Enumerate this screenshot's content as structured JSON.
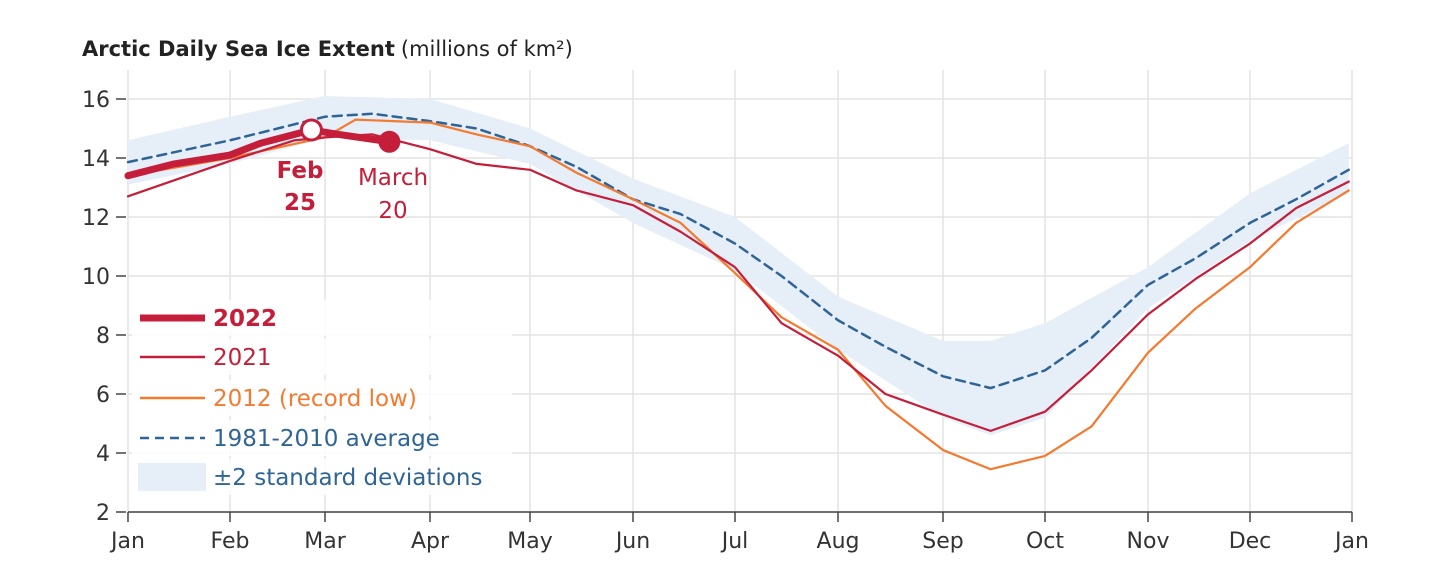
{
  "chart_data": {
    "type": "line",
    "title": "Arctic Daily Sea Ice Extent",
    "subtitle": "(millions of km²)",
    "xlabel": "",
    "ylabel": "",
    "ylim": [
      2,
      17
    ],
    "yticks": [
      2,
      4,
      6,
      8,
      10,
      12,
      14,
      16
    ],
    "xticks": [
      "Jan",
      "Feb",
      "Mar",
      "Apr",
      "May",
      "Jun",
      "Jul",
      "Aug",
      "Sep",
      "Oct",
      "Nov",
      "Dec",
      "Jan"
    ],
    "grid": true,
    "legend_placement": "bottom-left",
    "colors": {
      "y2022": "#c41e3a",
      "y2021": "#c41e3a",
      "y2012": "#f47a30",
      "average": "#2f6496",
      "band": "#e6eef8"
    },
    "band": {
      "name": "±2 standard deviations",
      "x": [
        "01-01",
        "02-01",
        "03-01",
        "04-01",
        "05-01",
        "06-01",
        "07-01",
        "08-01",
        "09-01",
        "09-15",
        "10-01",
        "11-01",
        "12-01",
        "12-31"
      ],
      "upper": [
        14.6,
        15.4,
        16.1,
        16.0,
        15.0,
        13.3,
        12.0,
        9.3,
        7.8,
        7.8,
        8.4,
        10.3,
        12.8,
        14.5
      ],
      "lower": [
        13.1,
        13.8,
        14.7,
        14.6,
        13.8,
        11.8,
        10.2,
        7.5,
        5.2,
        4.6,
        5.2,
        8.9,
        11.2,
        12.8
      ]
    },
    "series": [
      {
        "name": "1981-2010 average",
        "style": "dashed",
        "x": [
          "01-01",
          "02-01",
          "03-01",
          "03-15",
          "04-01",
          "04-15",
          "05-01",
          "05-15",
          "06-01",
          "06-15",
          "07-01",
          "07-15",
          "08-01",
          "08-15",
          "09-01",
          "09-15",
          "10-01",
          "10-15",
          "11-01",
          "11-15",
          "12-01",
          "12-15",
          "12-31"
        ],
        "y": [
          13.86,
          14.6,
          15.4,
          15.5,
          15.25,
          15.0,
          14.4,
          13.7,
          12.6,
          12.1,
          11.1,
          10.0,
          8.5,
          7.6,
          6.6,
          6.2,
          6.8,
          7.9,
          9.7,
          10.6,
          11.8,
          12.6,
          13.6
        ]
      },
      {
        "name": "2012 (record low)",
        "x": [
          "01-01",
          "02-01",
          "03-01",
          "03-10",
          "04-01",
          "04-15",
          "05-01",
          "05-15",
          "06-01",
          "06-15",
          "07-01",
          "07-15",
          "08-01",
          "08-15",
          "09-01",
          "09-15",
          "10-01",
          "10-15",
          "11-01",
          "11-15",
          "12-01",
          "12-15",
          "12-31"
        ],
        "y": [
          13.4,
          14.0,
          14.7,
          15.3,
          15.2,
          14.8,
          14.4,
          13.5,
          12.6,
          11.8,
          10.1,
          8.6,
          7.5,
          5.6,
          4.1,
          3.45,
          3.9,
          4.9,
          7.4,
          8.9,
          10.3,
          11.8,
          12.9
        ]
      },
      {
        "name": "2021",
        "x": [
          "01-01",
          "02-01",
          "02-20",
          "03-01",
          "03-15",
          "04-01",
          "04-15",
          "05-01",
          "05-15",
          "06-01",
          "06-15",
          "07-01",
          "07-15",
          "08-01",
          "08-15",
          "09-01",
          "09-15",
          "10-01",
          "10-15",
          "11-01",
          "11-15",
          "12-01",
          "12-15",
          "12-31"
        ],
        "y": [
          12.7,
          13.9,
          14.6,
          14.7,
          14.8,
          14.3,
          13.8,
          13.6,
          12.9,
          12.4,
          11.5,
          10.3,
          8.4,
          7.3,
          6.0,
          5.3,
          4.75,
          5.4,
          6.8,
          8.7,
          9.9,
          11.1,
          12.3,
          13.2
        ]
      },
      {
        "name": "2022",
        "style": "bold",
        "x": [
          "01-01",
          "01-15",
          "02-01",
          "02-10",
          "02-25",
          "03-05",
          "03-20"
        ],
        "y": [
          13.4,
          13.8,
          14.1,
          14.5,
          14.95,
          14.8,
          14.55
        ]
      }
    ],
    "annotations": [
      {
        "label_line1": "Feb",
        "label_line2": "25",
        "x": "02-25",
        "y": 14.95,
        "marker": "open-circle"
      },
      {
        "label_line1": "March",
        "label_line2": "20",
        "x": "03-20",
        "y": 14.55,
        "marker": "filled-circle"
      }
    ],
    "legend": [
      "2022",
      "2021",
      "2012 (record low)",
      "1981-2010 average",
      "±2 standard deviations"
    ]
  }
}
